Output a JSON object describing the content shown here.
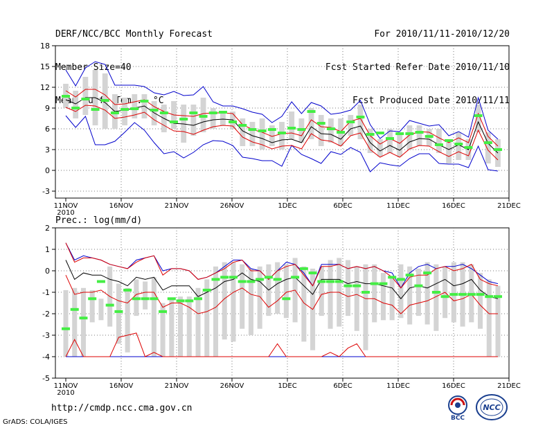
{
  "header": {
    "title": "DERF/NCC/BCC Monthly Forecast",
    "member_size": "Member Size=40",
    "variable": "Mean Surf. Temp.: °C",
    "period": "For 2010/11/11-2010/12/20",
    "started": "Fcst Started Refer Date 2010/11/10",
    "produced": "Fcst Produced Date 2010/11/11"
  },
  "footer": {
    "url": "http://cmdp.ncc.cma.gov.cn",
    "credit": "GrADS: COLA/IGES",
    "logo_bcc": "BCC",
    "logo_ncc": "NCC"
  },
  "colors": {
    "mean": "#000000",
    "spread": "#dd0000",
    "extreme": "#0000cc",
    "box": "#d4d4d4",
    "obs": "#44ee44",
    "grid": "#777777"
  },
  "chart_data": [
    {
      "type": "line",
      "title": "Mean Surf. Temp.: °C",
      "x_tick_labels": [
        "11NOV",
        "16NOV",
        "21NOV",
        "26NOV",
        "1DEC",
        "6DEC",
        "11DEC",
        "16DEC",
        "21DEC"
      ],
      "year_label": "2010",
      "ylim": [
        -4,
        18
      ],
      "yticks": [
        -3,
        0,
        3,
        6,
        9,
        12,
        15,
        18
      ],
      "mean": [
        10.2,
        9.6,
        10.5,
        10.5,
        9.8,
        8.5,
        8.7,
        9.0,
        9.3,
        8.3,
        7.5,
        6.8,
        6.7,
        6.5,
        7.0,
        7.3,
        7.4,
        7.3,
        5.7,
        5.0,
        4.6,
        4.0,
        4.4,
        4.5,
        4.0,
        6.3,
        5.3,
        5.2,
        4.5,
        6.0,
        6.4,
        4.0,
        2.8,
        3.6,
        2.9,
        4.1,
        4.6,
        4.5,
        3.7,
        3.0,
        3.7,
        3.0,
        7.0,
        3.9,
        2.5
      ],
      "upper_red": [
        11.5,
        10.6,
        11.7,
        11.7,
        10.9,
        9.5,
        9.6,
        9.9,
        10.2,
        9.2,
        8.5,
        8.0,
        7.9,
        7.8,
        8.2,
        8.3,
        8.3,
        8.2,
        6.6,
        5.9,
        5.5,
        4.9,
        5.3,
        5.4,
        5.0,
        7.3,
        6.3,
        6.2,
        5.6,
        7.1,
        7.5,
        5.0,
        3.8,
        4.6,
        3.9,
        5.1,
        5.6,
        5.5,
        4.7,
        4.0,
        4.7,
        4.0,
        8.2,
        4.9,
        3.5
      ],
      "lower_red": [
        9.1,
        8.5,
        9.4,
        9.3,
        8.7,
        7.5,
        7.7,
        8.0,
        8.4,
        7.3,
        6.5,
        5.7,
        5.6,
        5.2,
        5.8,
        6.3,
        6.5,
        6.4,
        4.8,
        4.1,
        3.7,
        3.1,
        3.5,
        3.6,
        3.1,
        5.3,
        4.4,
        4.2,
        3.5,
        5.0,
        5.4,
        3.0,
        1.9,
        2.6,
        1.9,
        3.1,
        3.6,
        3.5,
        2.7,
        2.0,
        2.7,
        2.1,
        5.8,
        2.9,
        1.5
      ],
      "max_blue": [
        14.5,
        12.2,
        14.8,
        15.7,
        15.3,
        12.3,
        12.3,
        12.3,
        12.1,
        11.2,
        10.9,
        11.4,
        10.8,
        10.9,
        12.1,
        9.9,
        9.3,
        9.3,
        8.9,
        8.4,
        8.1,
        6.9,
        7.8,
        9.9,
        8.2,
        9.8,
        9.3,
        8.1,
        8.3,
        8.7,
        10.1,
        6.6,
        4.6,
        5.7,
        5.6,
        7.2,
        6.8,
        6.4,
        6.6,
        5.0,
        5.6,
        4.8,
        10.5,
        5.8,
        4.5
      ],
      "min_blue": [
        7.9,
        6.2,
        7.8,
        3.7,
        3.7,
        4.2,
        5.5,
        6.9,
        5.8,
        4.0,
        2.4,
        2.7,
        1.8,
        2.6,
        3.7,
        4.3,
        4.2,
        3.6,
        1.9,
        1.7,
        1.4,
        1.4,
        0.6,
        3.6,
        2.3,
        1.7,
        1.0,
        2.7,
        2.3,
        3.3,
        2.6,
        -0.2,
        1.1,
        0.8,
        0.6,
        1.7,
        2.4,
        2.4,
        1.0,
        0.9,
        0.9,
        0.4,
        3.5,
        0.1,
        -0.1
      ],
      "box_hi": [
        12.5,
        11.5,
        13.5,
        14.5,
        14.0,
        11.0,
        10.5,
        11.0,
        11.0,
        10.0,
        9.5,
        10.0,
        9.5,
        9.5,
        10.5,
        9.0,
        8.5,
        8.5,
        7.5,
        7.0,
        7.5,
        6.5,
        7.0,
        8.5,
        7.5,
        9.0,
        8.0,
        7.5,
        7.5,
        8.0,
        9.5,
        6.0,
        4.5,
        6.0,
        5.5,
        6.5,
        6.5,
        6.0,
        6.0,
        4.5,
        5.5,
        4.5,
        9.5,
        5.5,
        4.5
      ],
      "box_lo": [
        9.0,
        7.5,
        8.0,
        6.5,
        6.0,
        6.0,
        6.5,
        7.5,
        7.5,
        6.5,
        5.5,
        6.0,
        4.0,
        5.0,
        5.5,
        6.0,
        6.5,
        6.0,
        3.5,
        3.5,
        3.0,
        3.5,
        3.0,
        4.5,
        4.0,
        4.5,
        3.5,
        4.0,
        3.5,
        5.0,
        4.5,
        2.5,
        2.0,
        2.5,
        2.0,
        3.0,
        3.5,
        3.5,
        2.5,
        1.0,
        1.5,
        1.5,
        5.5,
        1.0,
        0.5
      ],
      "observed": [
        10.7,
        9.0,
        10.3,
        8.8,
        10.1,
        8.3,
        8.8,
        8.9,
        10.0,
        8.7,
        8.3,
        7.0,
        7.4,
        8.3,
        7.8,
        8.3,
        8.4,
        7.0,
        6.5,
        5.9,
        5.7,
        5.9,
        5.4,
        6.1,
        5.9,
        8.5,
        6.8,
        6.0,
        5.5,
        7.0,
        7.7,
        5.2,
        5.4,
        4.6,
        5.3,
        5.3,
        5.5,
        4.9,
        3.7,
        4.3,
        3.8,
        3.3,
        7.9,
        4.0,
        3.0
      ],
      "legend": []
    },
    {
      "type": "line",
      "title": "Prec.: log(mm/d)",
      "x_tick_labels": [
        "11NOV",
        "16NOV",
        "21NOV",
        "26NOV",
        "1DEC",
        "6DEC",
        "11DEC",
        "16DEC",
        "21DEC"
      ],
      "year_label": "2010",
      "ylim": [
        -5,
        2
      ],
      "yticks": [
        -5,
        -4,
        -3,
        -2,
        -1,
        0,
        1,
        2
      ],
      "mean": [
        0.5,
        -0.4,
        -0.1,
        -0.2,
        -0.2,
        -0.4,
        -0.5,
        -0.7,
        -0.3,
        -0.4,
        -0.3,
        -0.9,
        -0.7,
        -0.7,
        -0.7,
        -1.2,
        -1.0,
        -0.8,
        -0.5,
        -0.4,
        -0.1,
        -0.4,
        -0.5,
        -0.9,
        -0.6,
        -0.4,
        -0.3,
        -0.7,
        -1.1,
        -0.4,
        -0.4,
        -0.4,
        -0.6,
        -0.5,
        -0.6,
        -0.6,
        -0.7,
        -0.8,
        -1.3,
        -0.8,
        -0.7,
        -0.8,
        -0.6,
        -0.4,
        -0.7,
        -0.6,
        -0.4,
        -0.9,
        -1.2,
        -1.3
      ],
      "upper_red": [
        1.3,
        0.4,
        0.6,
        0.6,
        0.5,
        0.3,
        0.2,
        0.1,
        0.4,
        0.6,
        0.7,
        -0.2,
        0.1,
        0.1,
        0.0,
        -0.4,
        -0.3,
        -0.1,
        0.1,
        0.4,
        0.5,
        0.0,
        0.0,
        -0.4,
        0.0,
        0.2,
        0.3,
        -0.2,
        -0.7,
        0.2,
        0.2,
        0.3,
        0.1,
        0.2,
        0.1,
        0.2,
        0.0,
        -0.3,
        -0.8,
        -0.3,
        -0.2,
        -0.2,
        0.1,
        0.2,
        0.0,
        0.1,
        0.3,
        -0.4,
        -0.6,
        -0.7
      ],
      "lower_red": [
        -0.2,
        -1.1,
        -1.0,
        -1.0,
        -0.9,
        -1.2,
        -1.4,
        -1.5,
        -1.1,
        -1.0,
        -1.0,
        -1.7,
        -1.5,
        -1.5,
        -1.7,
        -2.0,
        -1.9,
        -1.7,
        -1.3,
        -1.0,
        -0.8,
        -1.1,
        -1.2,
        -1.7,
        -1.4,
        -1.0,
        -0.9,
        -1.5,
        -1.8,
        -1.1,
        -1.0,
        -1.0,
        -1.2,
        -1.1,
        -1.3,
        -1.3,
        -1.5,
        -1.6,
        -2.0,
        -1.6,
        -1.5,
        -1.4,
        -1.2,
        -1.0,
        -1.4,
        -1.3,
        -1.1,
        -1.6,
        -2.0,
        -2.0
      ],
      "max_blue": [
        1.3,
        0.5,
        0.7,
        0.6,
        0.5,
        0.3,
        0.2,
        0.1,
        0.5,
        0.6,
        0.7,
        0.0,
        0.1,
        0.1,
        0.0,
        -0.4,
        -0.3,
        -0.1,
        0.2,
        0.5,
        0.5,
        0.1,
        0.0,
        -0.4,
        0.0,
        0.4,
        0.3,
        -0.1,
        -0.7,
        0.3,
        0.3,
        0.3,
        0.1,
        0.2,
        0.1,
        0.2,
        0.0,
        -0.1,
        -0.8,
        -0.1,
        0.2,
        0.3,
        0.1,
        0.2,
        0.2,
        0.3,
        0.1,
        -0.2,
        -0.5,
        -0.6
      ],
      "min_blue": [
        -4,
        -4,
        -4,
        -4,
        -4,
        -4,
        -4,
        -4,
        -4,
        -4,
        -4,
        -4,
        -4,
        -4,
        -4,
        -4,
        -4,
        -4,
        -4,
        -4,
        -4,
        -4,
        -4,
        -4,
        -4,
        -4,
        -4,
        -4,
        -4,
        -4,
        -4,
        -4,
        -4,
        -4,
        -4,
        -4,
        -4,
        -4,
        -4,
        -4,
        -4,
        -4,
        -4,
        -4,
        -4,
        -4,
        -4,
        -4,
        -4,
        -4
      ],
      "min_red": [
        -4,
        -3.2,
        -4,
        -4,
        -4,
        -4,
        -3.1,
        -3.0,
        -2.9,
        -4,
        -3.8,
        -4,
        -4,
        -4,
        -4,
        -4,
        -4,
        -4,
        -4,
        -4,
        -4,
        -4,
        -4,
        -4,
        -3.4,
        -4,
        -4,
        -4,
        -4,
        -4,
        -3.8,
        -4,
        -3.6,
        -3.4,
        -4,
        -4,
        -4,
        -4,
        -4,
        -4,
        -4,
        -4,
        -4,
        -4,
        -4,
        -4,
        -4,
        -4,
        -4,
        -4
      ],
      "box_hi": [
        -0.9,
        -0.8,
        -0.8,
        -0.9,
        -1.3,
        0.2,
        -0.6,
        -0.8,
        -0.4,
        -0.5,
        -0.3,
        -1.5,
        -1.3,
        -1.2,
        -1.2,
        -0.8,
        -0.4,
        0.2,
        0.4,
        0.4,
        0.3,
        0.1,
        0.2,
        0.3,
        0.4,
        0.3,
        0.6,
        0.2,
        0.1,
        0.2,
        0.5,
        0.6,
        0.5,
        0.2,
        0.3,
        0.3,
        -0.1,
        -0.3,
        0.3,
        0.2,
        0.1,
        0.4,
        0.3,
        0.2,
        0.4,
        0.4,
        0.3,
        -0.1,
        -0.4,
        -0.7
      ],
      "box_lo": [
        -4.0,
        -4.0,
        -4.0,
        -2.4,
        -2.3,
        -2.6,
        -3.4,
        -3.8,
        -2.1,
        -1.8,
        -4.0,
        -4.0,
        -4.0,
        -4.0,
        -4.0,
        -4.0,
        -4.0,
        -4.0,
        -3.2,
        -3.3,
        -2.7,
        -3.0,
        -2.7,
        -2.1,
        -2.0,
        -2.2,
        -2.4,
        -3.3,
        -3.7,
        -2.1,
        -2.7,
        -2.6,
        -2.1,
        -2.8,
        -3.7,
        -2.4,
        -2.3,
        -2.3,
        -2.2,
        -2.5,
        -2.1,
        -2.5,
        -2.8,
        -2.2,
        -2.4,
        -2.6,
        -2.4,
        -2.7,
        -4.0,
        -4.0
      ],
      "observed": [
        -2.7,
        -1.8,
        -2.2,
        -1.3,
        -0.5,
        -1.6,
        -1.9,
        -0.9,
        -1.3,
        -1.3,
        -1.3,
        -1.9,
        -1.3,
        -1.4,
        -1.4,
        -1.3,
        -0.9,
        -0.4,
        -0.3,
        -0.3,
        -0.5,
        -0.5,
        -0.4,
        -0.3,
        -0.4,
        -1.3,
        -0.3,
        0.1,
        -0.1,
        -0.5,
        -0.5,
        -0.5,
        -0.7,
        -0.7,
        -1.0,
        -0.6,
        -0.6,
        -0.3,
        -0.4,
        -0.2,
        -0.7,
        -0.1,
        -1.0,
        -1.2,
        -1.1,
        -1.1,
        -1.1,
        -1.1,
        -1.2,
        -1.2
      ],
      "legend": []
    }
  ]
}
